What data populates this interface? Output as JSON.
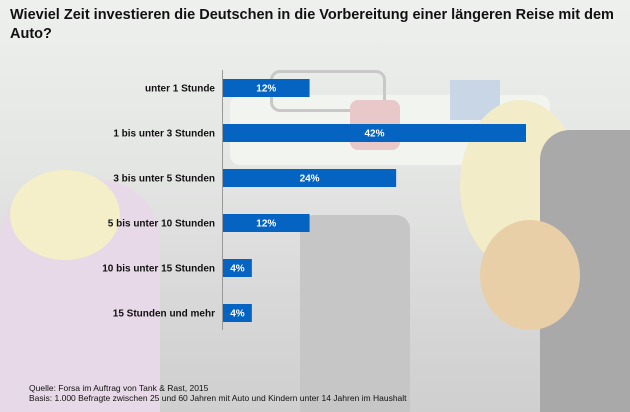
{
  "chart_data": {
    "type": "bar",
    "orientation": "horizontal",
    "title": "Wieviel Zeit investieren die Deutschen in die Vorbereitung einer längeren Reise mit dem Auto?",
    "categories": [
      "unter 1 Stunde",
      "1 bis unter 3 Stunden",
      "3 bis unter 5 Stunden",
      "5 bis unter 10 Stunden",
      "10 bis unter 15 Stunden",
      "15 Stunden und mehr"
    ],
    "values": [
      12,
      42,
      24,
      12,
      4,
      4
    ],
    "data_labels": [
      "12%",
      "42%",
      "24%",
      "12%",
      "4%",
      "4%"
    ],
    "unit": "%",
    "xlim": [
      0,
      42
    ],
    "grid": false,
    "bar_color": "#0563c1"
  },
  "footer": {
    "source": "Quelle: Forsa im Auftrag von Tank & Rast, 2015",
    "basis": "Basis: 1.000 Befragte zwischen 25 und 60 Jahren mit Auto und Kindern unter 14 Jahren im Haushalt"
  }
}
